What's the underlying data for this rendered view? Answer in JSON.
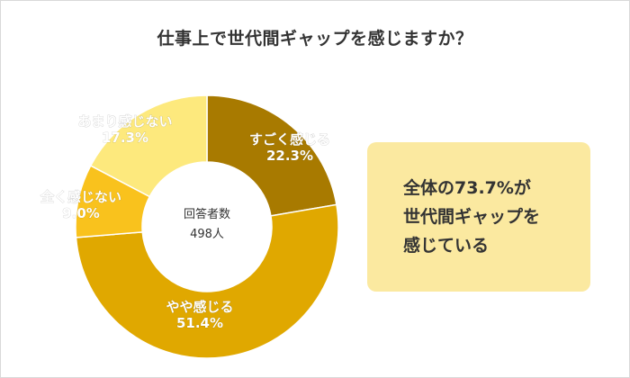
{
  "title": "仕事上で世代間ギャップを感じますか？",
  "center": {
    "line1": "回答者数",
    "line2": "498人"
  },
  "callout": {
    "line1": "全体の73.7%が",
    "line2": "世代間ギャップを",
    "line3": "感じている"
  },
  "chart_data": {
    "type": "pie",
    "title": "仕事上で世代間ギャップを感じますか？",
    "total_label": "回答者数 498人",
    "slices": [
      {
        "label": "すごく感じる",
        "value": 22.3,
        "value_label": "22.3%",
        "color": "#a87a00"
      },
      {
        "label": "やや感じる",
        "value": 51.4,
        "value_label": "51.4%",
        "color": "#e0a800"
      },
      {
        "label": "全く感じない",
        "value": 9.0,
        "value_label": "9.0%",
        "color": "#f9c21d"
      },
      {
        "label": "あまり感じない",
        "value": 17.3,
        "value_label": "17.3%",
        "color": "#fde97d"
      }
    ]
  }
}
